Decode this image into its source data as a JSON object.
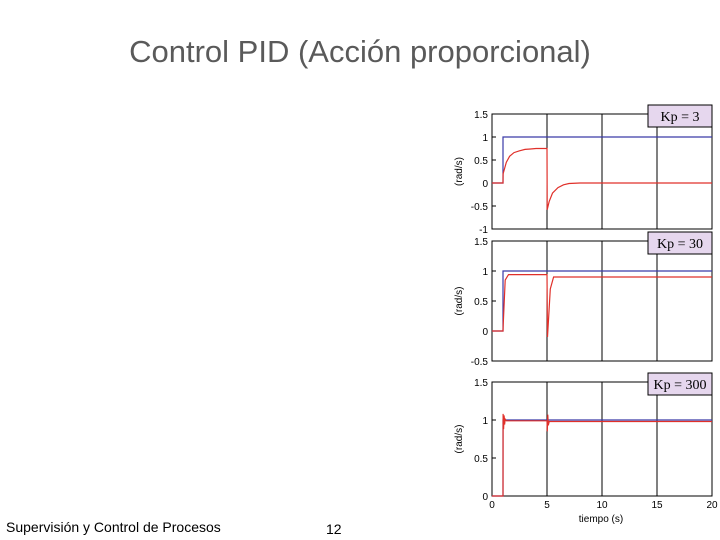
{
  "page": {
    "title": "Control PID (Acción proporcional)",
    "footer_left": "Supervisión y Control de Procesos",
    "page_number": "12"
  },
  "colors": {
    "reference": "#3a3aa8",
    "response": "#e0302a",
    "label_box": "#e6d7ee"
  },
  "chart_data": [
    {
      "type": "line",
      "annotation": "Kp = 3",
      "ylabel": "(rad/s)",
      "xlabel": "",
      "xlim": [
        0,
        20
      ],
      "ylim": [
        -1,
        1.5
      ],
      "ytick_labels": [
        "1.5",
        "1",
        "0.5",
        "0",
        "-0.5",
        "-1"
      ],
      "yticks": [
        1.5,
        1,
        0.5,
        0,
        -0.5,
        -1
      ],
      "xticks": [
        0,
        5,
        10,
        15,
        20
      ],
      "grid": true,
      "series": [
        {
          "x": [
            0,
            1,
            1,
            20
          ],
          "y": [
            0,
            0,
            1,
            1
          ]
        },
        {
          "x": [
            0,
            1,
            1.01,
            1.3,
            1.6,
            2,
            2.5,
            3,
            3.5,
            4,
            4.95,
            5,
            5.02,
            5.2,
            5.5,
            6,
            6.5,
            7,
            8,
            9,
            20
          ],
          "y": [
            0,
            0,
            0.2,
            0.45,
            0.58,
            0.66,
            0.7,
            0.73,
            0.74,
            0.75,
            0.75,
            0.75,
            -0.58,
            -0.4,
            -0.22,
            -0.1,
            -0.04,
            -0.01,
            0,
            0,
            0
          ]
        }
      ]
    },
    {
      "type": "line",
      "annotation": "Kp = 30",
      "ylabel": "(rad/s)",
      "xlabel": "",
      "xlim": [
        0,
        20
      ],
      "ylim": [
        -0.5,
        1.5
      ],
      "ytick_labels": [
        "1.5",
        "1",
        "0.5",
        "0",
        "-0.5"
      ],
      "yticks": [
        1.5,
        1,
        0.5,
        0,
        -0.5
      ],
      "xticks": [
        0,
        5,
        10,
        15,
        20
      ],
      "grid": true,
      "series": [
        {
          "x": [
            0,
            1,
            1,
            20
          ],
          "y": [
            0,
            0,
            1,
            1
          ]
        },
        {
          "x": [
            0,
            1,
            1.02,
            1.2,
            1.5,
            4.95,
            5,
            5.05,
            5.3,
            5.6,
            20
          ],
          "y": [
            0,
            0,
            0.1,
            0.85,
            0.94,
            0.94,
            0.94,
            -0.1,
            0.7,
            0.9,
            0.9
          ]
        }
      ]
    },
    {
      "type": "line",
      "annotation": "Kp = 300",
      "ylabel": "(rad/s)",
      "xlabel": "tiempo (s)",
      "xlim": [
        0,
        20
      ],
      "ylim": [
        0,
        1.5
      ],
      "ytick_labels": [
        "1.5",
        "1",
        "0.5",
        "0"
      ],
      "yticks": [
        1.5,
        1,
        0.5,
        0
      ],
      "xtick_labels": [
        "0",
        "5",
        "10",
        "15",
        "20"
      ],
      "xticks": [
        0,
        5,
        10,
        15,
        20
      ],
      "grid": true,
      "series": [
        {
          "x": [
            0,
            1,
            1,
            20
          ],
          "y": [
            0,
            0,
            1,
            1
          ]
        },
        {
          "x": [
            0,
            1,
            1.01,
            1.05,
            1.1,
            1.15,
            1.2,
            1.3,
            4.95,
            5,
            5.03,
            5.07,
            5.12,
            5.2,
            20
          ],
          "y": [
            0,
            0,
            1.08,
            0.88,
            1.06,
            0.94,
            1.01,
            0.99,
            0.99,
            0.99,
            0.85,
            1.07,
            0.93,
            0.98,
            0.98
          ]
        }
      ]
    }
  ]
}
